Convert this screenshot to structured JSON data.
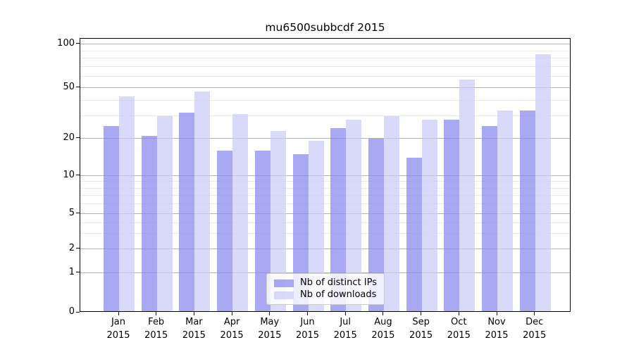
{
  "chart_data": {
    "type": "bar",
    "title": "mu6500subbcdf 2015",
    "categories": [
      "Jan",
      "Feb",
      "Mar",
      "Apr",
      "May",
      "Jun",
      "Jul",
      "Aug",
      "Sep",
      "Oct",
      "Nov",
      "Dec"
    ],
    "category_year": "2015",
    "series": [
      {
        "name": "Nb of distinct IPs",
        "color": "rgba(135,135,238,0.72)",
        "values": [
          25,
          21,
          32,
          16,
          16,
          15,
          24,
          20,
          14,
          28,
          25,
          33
        ]
      },
      {
        "name": "Nb of downloads",
        "color": "rgba(202,202,246,0.72)",
        "values": [
          43,
          30,
          47,
          31,
          23,
          19,
          28,
          30,
          28,
          57,
          33,
          85
        ]
      }
    ],
    "xlabel": "",
    "ylabel": "",
    "y_scale": "log-like (custom 1-2-5 ticks, 0 at baseline)",
    "y_major_ticks": [
      0,
      1,
      2,
      5,
      10,
      20,
      50,
      100
    ],
    "y_major_tick_labels": [
      "0",
      "1",
      "2",
      "5",
      "10",
      "20",
      "50",
      "100"
    ],
    "y_minor_ticks": [
      3,
      4,
      6,
      7,
      8,
      9,
      30,
      40,
      60,
      70,
      80,
      90
    ],
    "y_tick_fractions": {
      "0": 0.0,
      "1": 0.144,
      "2": 0.2314,
      "5": 0.3599,
      "10": 0.5,
      "20": 0.6362,
      "50": 0.8201,
      "100": 0.9807
    },
    "grid": true,
    "legend_position": "lower center",
    "colors": {
      "background": "#ffffff",
      "axis": "#000000",
      "major_grid": "#b2b2b2",
      "minor_grid": "#e9e9e9",
      "legend_border": "#cccccc"
    }
  }
}
